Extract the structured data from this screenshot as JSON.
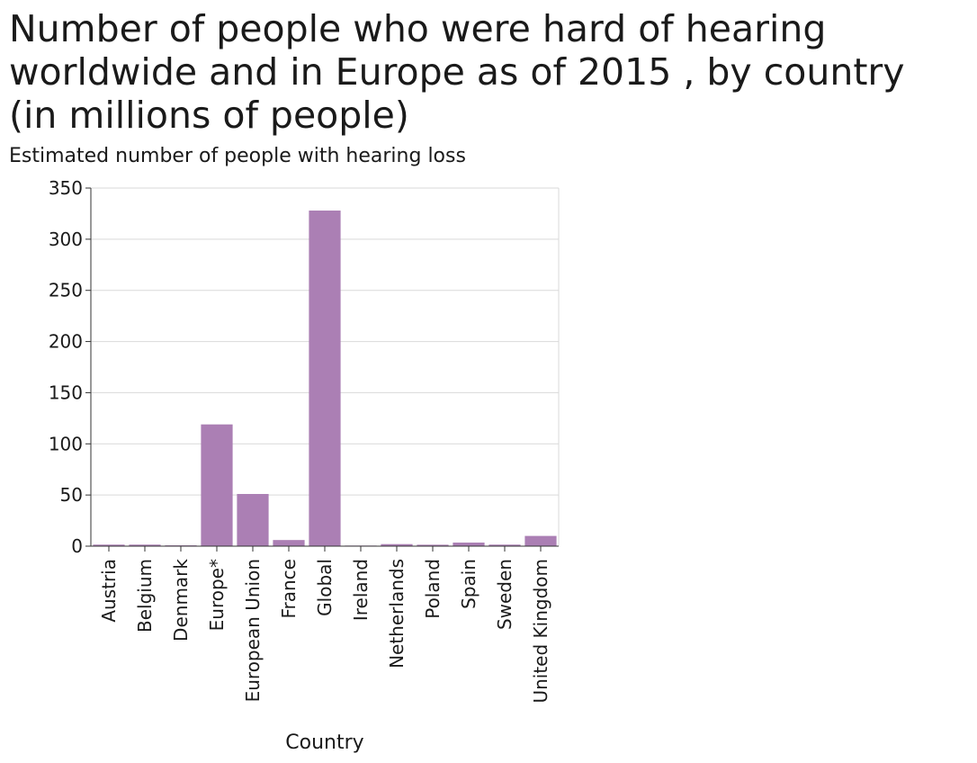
{
  "chart_data": {
    "type": "bar",
    "title_lines": [
      "Number of people who were hard of hearing",
      "worldwide and in Europe as of 2015 , by country",
      "(in millions of people)"
    ],
    "xlabel": "Country",
    "ylabel": "Estimated number of people with hearing loss",
    "categories": [
      "Austria",
      "Belgium",
      "Denmark",
      "Europe*",
      "European Union",
      "France",
      "Global",
      "Ireland",
      "Netherlands",
      "Poland",
      "Spain",
      "Sweden",
      "United Kingdom"
    ],
    "values": [
      1.5,
      1.5,
      0.8,
      119,
      51,
      6,
      328,
      0.6,
      2,
      1.4,
      3.5,
      1.5,
      10
    ],
    "ylim": [
      0,
      350
    ],
    "yticks": [
      0,
      50,
      100,
      150,
      200,
      250,
      300,
      350
    ],
    "grid": true,
    "bar_color": "#ab7fb4"
  }
}
